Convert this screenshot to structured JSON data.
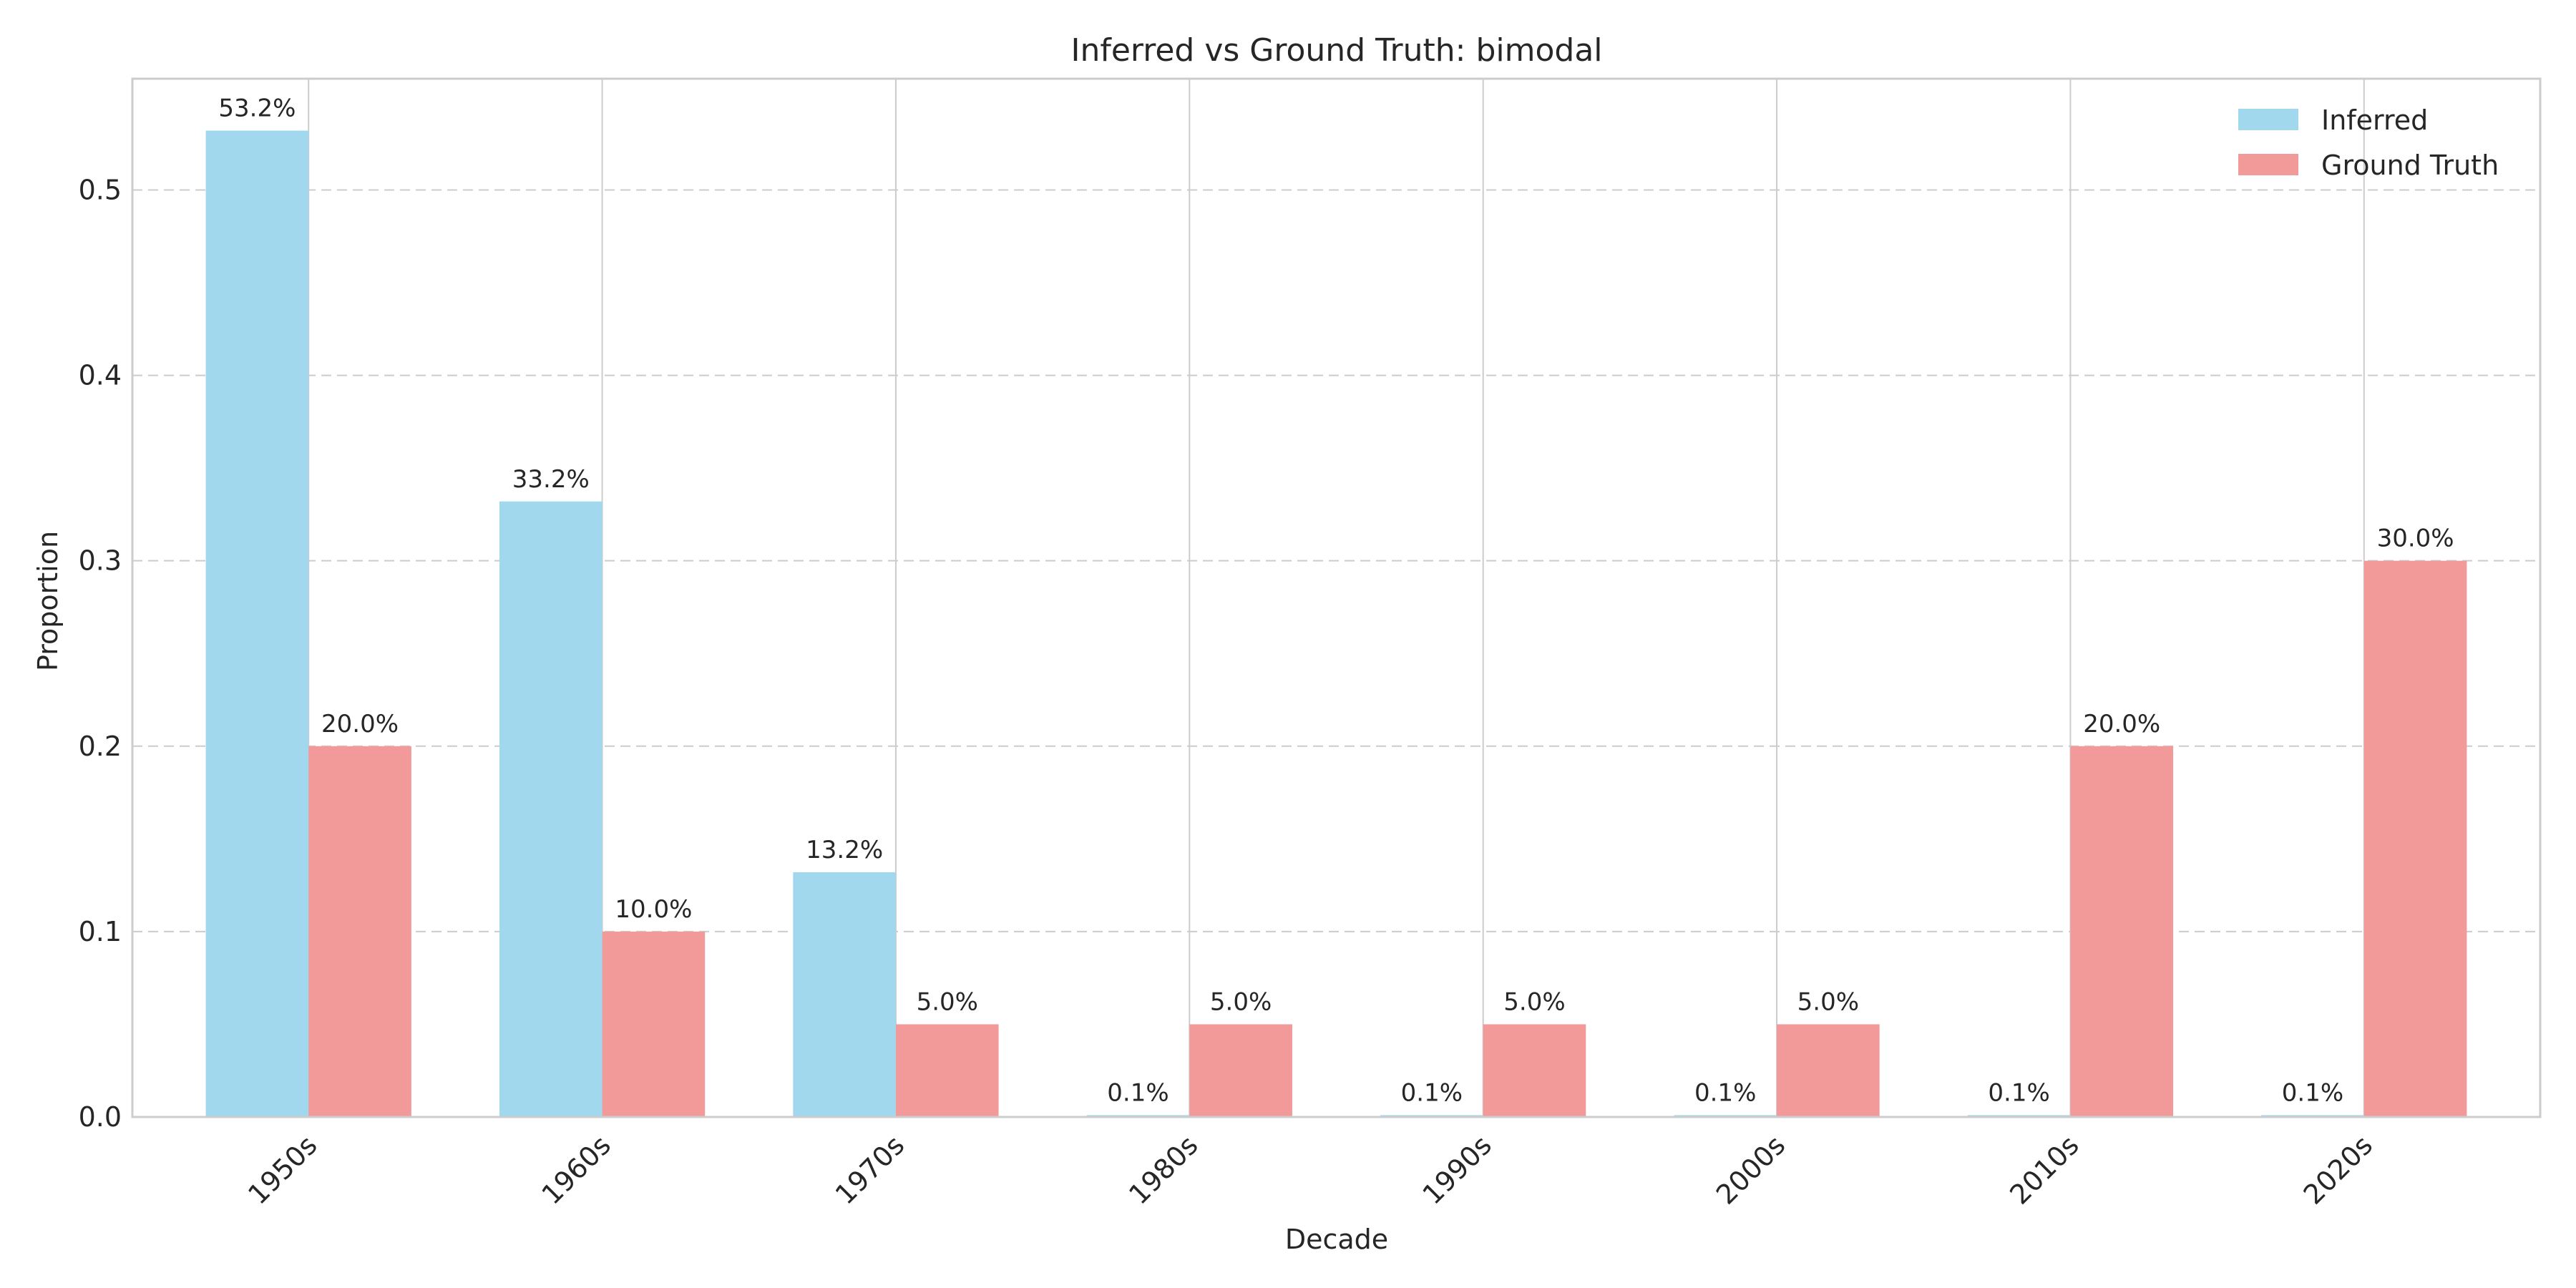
{
  "chart_data": {
    "type": "bar",
    "title": "Inferred vs Ground Truth: bimodal",
    "xlabel": "Decade",
    "ylabel": "Proportion",
    "categories": [
      "1950s",
      "1960s",
      "1970s",
      "1980s",
      "1990s",
      "2000s",
      "2010s",
      "2020s"
    ],
    "series": [
      {
        "name": "Inferred",
        "color": "#a1d8ee",
        "values": [
          0.532,
          0.332,
          0.132,
          0.001,
          0.001,
          0.001,
          0.001,
          0.001
        ],
        "labels": [
          "53.2%",
          "33.2%",
          "13.2%",
          "0.1%",
          "0.1%",
          "0.1%",
          "0.1%",
          "0.1%"
        ]
      },
      {
        "name": "Ground Truth",
        "color": "#f29a9a",
        "values": [
          0.2,
          0.1,
          0.05,
          0.05,
          0.05,
          0.05,
          0.2,
          0.3
        ],
        "labels": [
          "20.0%",
          "10.0%",
          "5.0%",
          "5.0%",
          "5.0%",
          "5.0%",
          "20.0%",
          "30.0%"
        ]
      }
    ],
    "ylim": [
      0,
      0.56
    ],
    "yticks": [
      0.0,
      0.1,
      0.2,
      0.3,
      0.4,
      0.5
    ],
    "ytick_labels": [
      "0.0",
      "0.1",
      "0.2",
      "0.3",
      "0.4",
      "0.5"
    ],
    "grid": true,
    "legend_position": "top-right"
  }
}
